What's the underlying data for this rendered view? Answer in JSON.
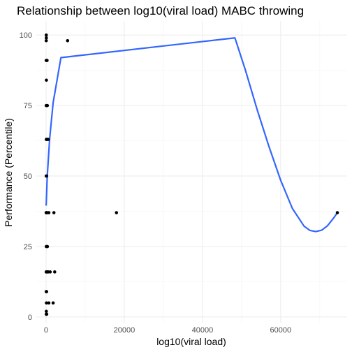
{
  "chart_data": {
    "type": "scatter",
    "title": "Relationship between log10(viral load) MABC throwing",
    "xlabel": "log10(viral load)",
    "ylabel": "Performance (Percentile)",
    "xlim": [
      -2500,
      77000
    ],
    "ylim": [
      -2,
      105
    ],
    "x_ticks": [
      0,
      20000,
      40000,
      60000
    ],
    "x_tick_labels": [
      "0",
      "20000",
      "40000",
      "60000"
    ],
    "y_ticks": [
      0,
      25,
      50,
      75,
      100
    ],
    "y_tick_labels": [
      "0",
      "25",
      "50",
      "75",
      "100"
    ],
    "grid": true,
    "points": [
      {
        "x": 50,
        "y": 100
      },
      {
        "x": 60,
        "y": 99
      },
      {
        "x": 40,
        "y": 98
      },
      {
        "x": 5500,
        "y": 98
      },
      {
        "x": 30,
        "y": 91
      },
      {
        "x": 120,
        "y": 91
      },
      {
        "x": 250,
        "y": 91
      },
      {
        "x": 80,
        "y": 84
      },
      {
        "x": 40,
        "y": 75
      },
      {
        "x": 150,
        "y": 75
      },
      {
        "x": 320,
        "y": 75
      },
      {
        "x": 60,
        "y": 63
      },
      {
        "x": 260,
        "y": 63
      },
      {
        "x": 550,
        "y": 63
      },
      {
        "x": 40,
        "y": 50
      },
      {
        "x": 150,
        "y": 50
      },
      {
        "x": 20,
        "y": 37
      },
      {
        "x": 110,
        "y": 37
      },
      {
        "x": 260,
        "y": 37
      },
      {
        "x": 700,
        "y": 37
      },
      {
        "x": 2000,
        "y": 37
      },
      {
        "x": 18000,
        "y": 37
      },
      {
        "x": 74500,
        "y": 37
      },
      {
        "x": 60,
        "y": 25
      },
      {
        "x": 180,
        "y": 25
      },
      {
        "x": 340,
        "y": 25
      },
      {
        "x": 30,
        "y": 16
      },
      {
        "x": 120,
        "y": 16
      },
      {
        "x": 260,
        "y": 16
      },
      {
        "x": 520,
        "y": 16
      },
      {
        "x": 1050,
        "y": 16
      },
      {
        "x": 2200,
        "y": 16
      },
      {
        "x": 40,
        "y": 9
      },
      {
        "x": 130,
        "y": 9
      },
      {
        "x": 90,
        "y": 5
      },
      {
        "x": 700,
        "y": 5
      },
      {
        "x": 1800,
        "y": 5
      },
      {
        "x": 60,
        "y": 2
      },
      {
        "x": 40,
        "y": 1
      },
      {
        "x": 160,
        "y": 1
      }
    ],
    "smooth_line": {
      "color": "#3366ff",
      "x": [
        20,
        300,
        900,
        1800,
        3800,
        48300,
        51000,
        54000,
        57000,
        60000,
        63000,
        66000,
        67500,
        69000,
        70500,
        72000,
        73500,
        74500
      ],
      "y": [
        39.5,
        50,
        63,
        76,
        92,
        99,
        87.5,
        73.5,
        60.5,
        48.5,
        38.5,
        32.2,
        30.7,
        30.3,
        30.8,
        32.4,
        35,
        37
      ]
    }
  }
}
